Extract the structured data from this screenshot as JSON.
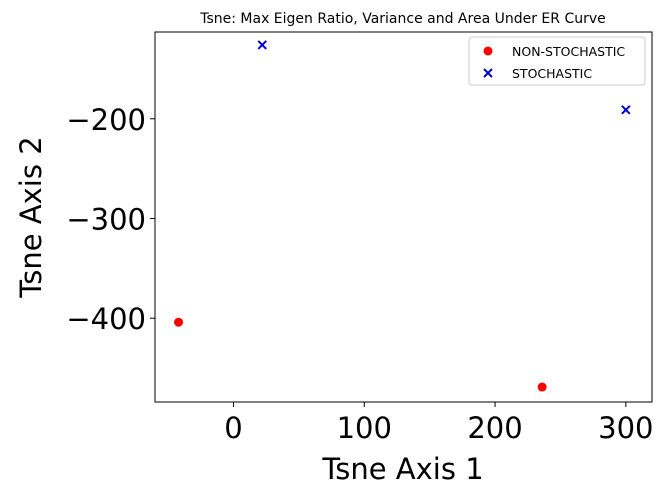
{
  "chart_data": {
    "type": "scatter",
    "title": "Tsne: Max Eigen Ratio, Variance and Area Under ER Curve",
    "xlabel": "Tsne Axis 1",
    "ylabel": "Tsne Axis 2",
    "xlim": [
      -60,
      320
    ],
    "ylim": [
      -484,
      -113
    ],
    "xticks": [
      0,
      100,
      200,
      300
    ],
    "xtick_labels": [
      "0",
      "100",
      "200",
      "300"
    ],
    "yticks": [
      -200,
      -300,
      -400
    ],
    "ytick_labels": [
      "−200",
      "−300",
      "−400"
    ],
    "grid": false,
    "legend_position": "top-right",
    "series": [
      {
        "name": "NON-STOCHASTIC",
        "marker": "circle",
        "color": "#ff0000",
        "points": [
          {
            "x": -42,
            "y": -404
          },
          {
            "x": 236,
            "y": -469
          }
        ]
      },
      {
        "name": "STOCHASTIC",
        "marker": "x",
        "color": "#0000cc",
        "points": [
          {
            "x": 22,
            "y": -126
          },
          {
            "x": 300,
            "y": -191
          }
        ]
      }
    ]
  }
}
